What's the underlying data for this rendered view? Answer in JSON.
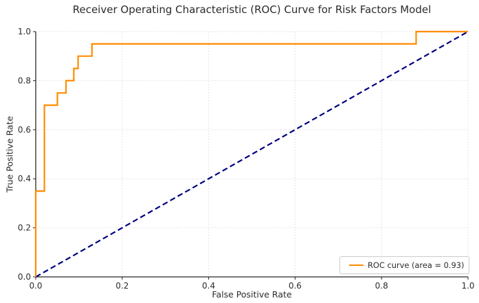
{
  "chart_data": {
    "type": "line",
    "title": "Receiver Operating Characteristic (ROC) Curve for Risk Factors Model",
    "xlabel": "False Positive Rate",
    "ylabel": "True Positive Rate",
    "xlim": [
      0.0,
      1.0
    ],
    "ylim": [
      0.0,
      1.0
    ],
    "xticks": [
      0.0,
      0.2,
      0.4,
      0.6,
      0.8,
      1.0
    ],
    "yticks": [
      0.0,
      0.2,
      0.4,
      0.6,
      0.8,
      1.0
    ],
    "xtick_labels": [
      "0.0",
      "0.2",
      "0.4",
      "0.6",
      "0.8",
      "1.0"
    ],
    "ytick_labels": [
      "0.0",
      "0.2",
      "0.4",
      "0.6",
      "0.8",
      "1.0"
    ],
    "grid": true,
    "grid_style": "dotted",
    "auc": 0.93,
    "legend": {
      "position": "lower right",
      "entries": [
        {
          "label": "ROC curve (area = 0.93)",
          "color": "#ff8c00",
          "style": "solid"
        }
      ]
    },
    "series": [
      {
        "name": "ROC curve",
        "color": "#ff8c00",
        "style": "solid",
        "points": [
          [
            0.0,
            0.0
          ],
          [
            0.0,
            0.35
          ],
          [
            0.02,
            0.35
          ],
          [
            0.02,
            0.7
          ],
          [
            0.05,
            0.7
          ],
          [
            0.05,
            0.75
          ],
          [
            0.07,
            0.75
          ],
          [
            0.07,
            0.8
          ],
          [
            0.088,
            0.8
          ],
          [
            0.088,
            0.85
          ],
          [
            0.098,
            0.85
          ],
          [
            0.098,
            0.9
          ],
          [
            0.13,
            0.9
          ],
          [
            0.13,
            0.95
          ],
          [
            0.88,
            0.95
          ],
          [
            0.88,
            1.0
          ],
          [
            1.0,
            1.0
          ]
        ]
      },
      {
        "name": "Chance diagonal",
        "color": "#000080",
        "style": "dashed",
        "points": [
          [
            0.0,
            0.0
          ],
          [
            1.0,
            1.0
          ]
        ]
      }
    ],
    "colors": {
      "grid": "#dcdcdc",
      "spine": "#262626",
      "text": "#2b2b2b"
    }
  }
}
